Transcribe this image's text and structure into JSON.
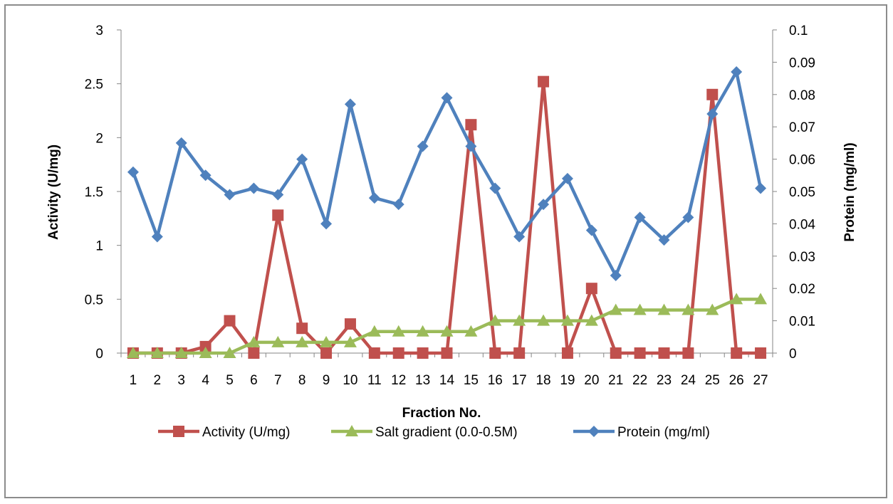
{
  "chart_data": {
    "type": "line",
    "categories": [
      "1",
      "2",
      "3",
      "4",
      "5",
      "6",
      "7",
      "8",
      "9",
      "10",
      "11",
      "12",
      "13",
      "14",
      "15",
      "16",
      "17",
      "18",
      "19",
      "20",
      "21",
      "22",
      "23",
      "24",
      "25",
      "26",
      "27"
    ],
    "xlabel": "Fraction No.",
    "ylabel_left": "Activity (U/mg)",
    "ylabel_right": "Protein (mg/ml)",
    "ylim_left": [
      0,
      3
    ],
    "yticks_left": [
      "0",
      "0.5",
      "1",
      "1.5",
      "2",
      "2.5",
      "3"
    ],
    "ylim_right": [
      0,
      0.1
    ],
    "yticks_right": [
      "0",
      "0.01",
      "0.02",
      "0.03",
      "0.04",
      "0.05",
      "0.06",
      "0.07",
      "0.08",
      "0.09",
      "0.1"
    ],
    "grid": false,
    "legend": "bottom",
    "series": [
      {
        "name": "Activity (U/mg)",
        "axis": "left",
        "marker": "square",
        "color": "#c0504d",
        "values": [
          0,
          0,
          0,
          0.06,
          0.3,
          0,
          1.28,
          0.23,
          0,
          0.27,
          0,
          0,
          0,
          0,
          2.12,
          0,
          0,
          2.52,
          0,
          0.6,
          0,
          0,
          0,
          0,
          2.4,
          0,
          0
        ]
      },
      {
        "name": "Salt gradient (0.0-0.5M)",
        "axis": "left",
        "marker": "triangle",
        "color": "#9bbb59",
        "values": [
          0,
          0,
          0,
          0,
          0,
          0.1,
          0.1,
          0.1,
          0.1,
          0.1,
          0.2,
          0.2,
          0.2,
          0.2,
          0.2,
          0.3,
          0.3,
          0.3,
          0.3,
          0.3,
          0.4,
          0.4,
          0.4,
          0.4,
          0.4,
          0.5,
          0.5
        ]
      },
      {
        "name": "Protein (mg/ml)",
        "axis": "right",
        "marker": "diamond",
        "color": "#4f81bd",
        "values": [
          0.056,
          0.036,
          0.065,
          0.055,
          0.049,
          0.051,
          0.049,
          0.06,
          0.04,
          0.077,
          0.048,
          0.046,
          0.064,
          0.079,
          0.064,
          0.051,
          0.036,
          0.046,
          0.054,
          0.038,
          0.024,
          0.042,
          0.035,
          0.042,
          0.074,
          0.087,
          0.051
        ]
      }
    ]
  }
}
